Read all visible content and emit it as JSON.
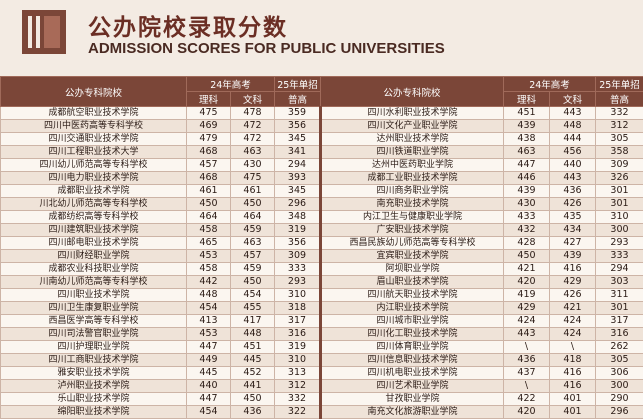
{
  "header": {
    "title": "公办院校录取分数",
    "subtitle": "ADMISSION SCORES FOR PUBLIC UNIVERSITIES"
  },
  "table": {
    "columns": [
      {
        "school": "公办专科院校",
        "exam24": "24年高考",
        "exam25": "25年单招",
        "science": "理科",
        "arts": "文科",
        "general": "普高"
      },
      {
        "school": "公办专科院校",
        "exam24": "24年高考",
        "exam25": "25年单招",
        "science": "理科",
        "arts": "文科",
        "general": "普高"
      }
    ],
    "rows": [
      [
        "成都航空职业技术学院",
        475,
        478,
        359,
        "四川水利职业技术学院",
        451,
        443,
        332
      ],
      [
        "四川中医药高等专科学校",
        469,
        472,
        356,
        "四川文化产业职业学院",
        439,
        448,
        312
      ],
      [
        "四川交通职业技术学院",
        479,
        472,
        345,
        "达州职业技术学院",
        438,
        444,
        305
      ],
      [
        "四川工程职业技术大学",
        468,
        463,
        341,
        "四川铁道职业学院",
        463,
        456,
        358
      ],
      [
        "四川幼儿师范高等专科学校",
        457,
        430,
        294,
        "达州中医药职业学院",
        447,
        440,
        309
      ],
      [
        "四川电力职业技术学院",
        468,
        475,
        393,
        "成都工业职业技术学院",
        446,
        443,
        326
      ],
      [
        "成都职业技术学院",
        461,
        461,
        345,
        "四川商务职业学院",
        439,
        436,
        301
      ],
      [
        "川北幼儿师范高等专科学校",
        450,
        450,
        296,
        "南充职业技术学院",
        430,
        426,
        301
      ],
      [
        "成都纺织高等专科学校",
        464,
        464,
        348,
        "内江卫生与健康职业学院",
        433,
        435,
        310
      ],
      [
        "四川建筑职业技术学院",
        458,
        459,
        319,
        "广安职业技术学院",
        432,
        434,
        300
      ],
      [
        "四川邮电职业技术学院",
        465,
        463,
        356,
        "西昌民族幼儿师范高等专科学校",
        428,
        427,
        293
      ],
      [
        "四川财经职业学院",
        453,
        457,
        309,
        "宜宾职业技术学院",
        450,
        439,
        333
      ],
      [
        "成都农业科技职业学院",
        458,
        459,
        333,
        "阿坝职业学院",
        421,
        416,
        294
      ],
      [
        "川南幼儿师范高等专科学校",
        442,
        450,
        293,
        "眉山职业技术学院",
        420,
        429,
        303
      ],
      [
        "四川职业技术学院",
        448,
        454,
        310,
        "四川航天职业技术学院",
        419,
        426,
        311
      ],
      [
        "四川卫生康复职业学院",
        454,
        455,
        318,
        "内江职业技术学院",
        429,
        421,
        301
      ],
      [
        "西昌医学高等专科学校",
        413,
        417,
        317,
        "四川城市职业学院",
        424,
        424,
        317
      ],
      [
        "四川司法警官职业学院",
        453,
        448,
        316,
        "四川化工职业技术学院",
        443,
        424,
        316
      ],
      [
        "四川护理职业学院",
        447,
        451,
        319,
        "四川体育职业学院",
        "\\",
        "\\",
        262
      ],
      [
        "四川工商职业技术学院",
        449,
        445,
        310,
        "四川信息职业技术学院",
        436,
        418,
        305
      ],
      [
        "雅安职业技术学院",
        445,
        452,
        313,
        "四川机电职业技术学院",
        437,
        416,
        306
      ],
      [
        "泸州职业技术学院",
        440,
        441,
        312,
        "四川艺术职业学院",
        "\\",
        416,
        300
      ],
      [
        "乐山职业技术学院",
        447,
        450,
        332,
        "甘孜职业学院",
        422,
        401,
        290
      ],
      [
        "绵阳职业技术学院",
        454,
        436,
        322,
        "南充文化旅游职业学院",
        420,
        401,
        296
      ]
    ]
  }
}
